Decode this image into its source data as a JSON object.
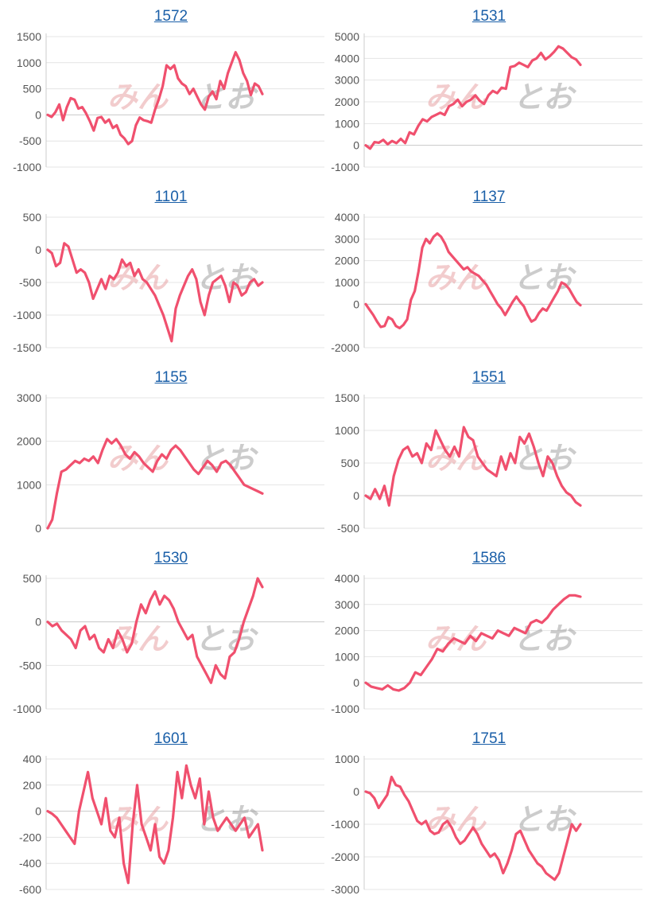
{
  "watermark": {
    "text_a": "みん",
    "text_b": "とお"
  },
  "colors": {
    "line": "#f0506e",
    "grid": "#e4e4e4",
    "zero": "#c8c8c8",
    "axis": "#cccccc",
    "title": "#1a5fa8"
  },
  "chart_data": [
    {
      "type": "line",
      "title": "1572",
      "ylim": [
        -1000,
        1500
      ],
      "yticks": [
        1500,
        1000,
        500,
        0,
        -500,
        -1000
      ],
      "values": [
        0,
        -40,
        50,
        200,
        -100,
        150,
        320,
        290,
        120,
        150,
        30,
        -120,
        -300,
        -60,
        -40,
        -150,
        -90,
        -250,
        -200,
        -380,
        -450,
        -560,
        -500,
        -200,
        -50,
        -100,
        -120,
        -150,
        100,
        300,
        550,
        950,
        880,
        950,
        700,
        600,
        550,
        400,
        500,
        350,
        200,
        100,
        350,
        450,
        300,
        650,
        500,
        800,
        1000,
        1200,
        1050,
        800,
        650,
        380,
        600,
        550,
        400
      ]
    },
    {
      "type": "line",
      "title": "1531",
      "ylim": [
        -1000,
        5000
      ],
      "yticks": [
        5000,
        4000,
        3000,
        2000,
        1000,
        0,
        -1000
      ],
      "values": [
        0,
        -150,
        150,
        120,
        250,
        50,
        200,
        100,
        300,
        100,
        600,
        500,
        900,
        1200,
        1100,
        1300,
        1400,
        1500,
        1400,
        1800,
        1900,
        2100,
        1800,
        2000,
        2100,
        2300,
        2050,
        1900,
        2300,
        2500,
        2400,
        2650,
        2600,
        3600,
        3650,
        3800,
        3700,
        3600,
        3900,
        4000,
        4250,
        3950,
        4100,
        4300,
        4550,
        4450,
        4250,
        4050,
        3950,
        3700
      ]
    },
    {
      "type": "line",
      "title": "1101",
      "ylim": [
        -1500,
        500
      ],
      "yticks": [
        500,
        0,
        -500,
        -1000,
        -1500
      ],
      "values": [
        0,
        -50,
        -250,
        -200,
        100,
        50,
        -150,
        -350,
        -300,
        -350,
        -500,
        -750,
        -600,
        -450,
        -600,
        -400,
        -450,
        -350,
        -150,
        -250,
        -200,
        -400,
        -300,
        -450,
        -500,
        -600,
        -700,
        -850,
        -1000,
        -1200,
        -1400,
        -900,
        -700,
        -550,
        -400,
        -300,
        -450,
        -800,
        -1000,
        -700,
        -500,
        -450,
        -400,
        -550,
        -800,
        -500,
        -550,
        -700,
        -650,
        -500,
        -450,
        -550,
        -500
      ]
    },
    {
      "type": "line",
      "title": "1137",
      "ylim": [
        -2000,
        4000
      ],
      "yticks": [
        4000,
        3000,
        2000,
        1000,
        0,
        -2000
      ],
      "values": [
        0,
        -250,
        -500,
        -800,
        -1050,
        -1000,
        -600,
        -700,
        -1000,
        -1100,
        -950,
        -700,
        200,
        600,
        1500,
        2600,
        3000,
        2800,
        3100,
        3250,
        3100,
        2800,
        2400,
        2200,
        2000,
        1800,
        1600,
        1700,
        1500,
        1400,
        1300,
        1100,
        900,
        600,
        300,
        0,
        -200,
        -500,
        -200,
        100,
        350,
        100,
        -100,
        -500,
        -800,
        -700,
        -400,
        -200,
        -300,
        0,
        300,
        600,
        1000,
        900,
        700,
        400,
        100,
        -50
      ]
    },
    {
      "type": "line",
      "title": "1155",
      "ylim": [
        0,
        3000
      ],
      "yticks": [
        3000,
        2000,
        1000,
        0
      ],
      "values": [
        0,
        200,
        800,
        1300,
        1350,
        1450,
        1550,
        1500,
        1600,
        1550,
        1650,
        1500,
        1800,
        2050,
        1950,
        2050,
        1900,
        1700,
        1600,
        1750,
        1650,
        1500,
        1400,
        1300,
        1550,
        1700,
        1600,
        1800,
        1900,
        1800,
        1650,
        1500,
        1350,
        1250,
        1400,
        1550,
        1450,
        1300,
        1500,
        1550,
        1450,
        1300,
        1150,
        1000,
        950,
        900,
        850,
        800
      ]
    },
    {
      "type": "line",
      "title": "1551",
      "ylim": [
        -500,
        1500
      ],
      "yticks": [
        1500,
        1000,
        500,
        0,
        -500
      ],
      "values": [
        0,
        -50,
        100,
        -50,
        150,
        -150,
        300,
        550,
        700,
        750,
        600,
        650,
        500,
        800,
        700,
        1000,
        850,
        700,
        600,
        750,
        600,
        1050,
        900,
        850,
        600,
        500,
        400,
        350,
        300,
        600,
        400,
        650,
        500,
        900,
        800,
        950,
        750,
        500,
        300,
        600,
        500,
        300,
        150,
        50,
        0,
        -100,
        -150
      ]
    },
    {
      "type": "line",
      "title": "1530",
      "ylim": [
        -1000,
        500
      ],
      "yticks": [
        500,
        0,
        -500,
        -1000
      ],
      "values": [
        0,
        -50,
        -20,
        -100,
        -150,
        -200,
        -300,
        -100,
        -50,
        -200,
        -150,
        -300,
        -350,
        -200,
        -300,
        -100,
        -200,
        -350,
        -250,
        0,
        200,
        100,
        250,
        350,
        200,
        300,
        250,
        150,
        0,
        -100,
        -200,
        -150,
        -400,
        -500,
        -600,
        -700,
        -500,
        -600,
        -650,
        -400,
        -350,
        -200,
        0,
        150,
        300,
        500,
        400
      ]
    },
    {
      "type": "line",
      "title": "1586",
      "ylim": [
        -1000,
        4000
      ],
      "yticks": [
        4000,
        3000,
        2000,
        1000,
        0,
        -1000
      ],
      "values": [
        0,
        -150,
        -200,
        -250,
        -100,
        -250,
        -300,
        -200,
        0,
        400,
        300,
        600,
        900,
        1300,
        1200,
        1500,
        1700,
        1600,
        1500,
        1800,
        1600,
        1900,
        1800,
        1700,
        2000,
        1900,
        1800,
        2100,
        2000,
        1900,
        2300,
        2400,
        2300,
        2500,
        2800,
        3000,
        3200,
        3350,
        3350,
        3300
      ]
    },
    {
      "type": "line",
      "title": "1601",
      "ylim": [
        -600,
        400
      ],
      "yticks": [
        400,
        200,
        0,
        -200,
        -400,
        -600
      ],
      "values": [
        0,
        -20,
        -50,
        -100,
        -150,
        -200,
        -250,
        0,
        150,
        300,
        100,
        0,
        -100,
        100,
        -150,
        -200,
        -50,
        -400,
        -550,
        -100,
        200,
        -100,
        -200,
        -300,
        -100,
        -350,
        -400,
        -300,
        -50,
        300,
        100,
        350,
        200,
        100,
        250,
        -100,
        150,
        -50,
        -150,
        -100,
        -50,
        -100,
        -150,
        -100,
        -50,
        -200,
        -150,
        -100,
        -300
      ]
    },
    {
      "type": "line",
      "title": "1751",
      "ylim": [
        -3000,
        1000
      ],
      "yticks": [
        1000,
        0,
        -1000,
        -2000,
        -3000
      ],
      "values": [
        0,
        -50,
        -200,
        -500,
        -300,
        -100,
        450,
        200,
        150,
        -100,
        -300,
        -600,
        -900,
        -1000,
        -900,
        -1200,
        -1300,
        -1250,
        -1000,
        -900,
        -1100,
        -1400,
        -1600,
        -1500,
        -1300,
        -1100,
        -1300,
        -1600,
        -1800,
        -2000,
        -1900,
        -2100,
        -2500,
        -2200,
        -1800,
        -1300,
        -1200,
        -1500,
        -1800,
        -2000,
        -2200,
        -2300,
        -2500,
        -2600,
        -2700,
        -2500,
        -2000,
        -1500,
        -1000,
        -1200,
        -1000
      ]
    }
  ]
}
